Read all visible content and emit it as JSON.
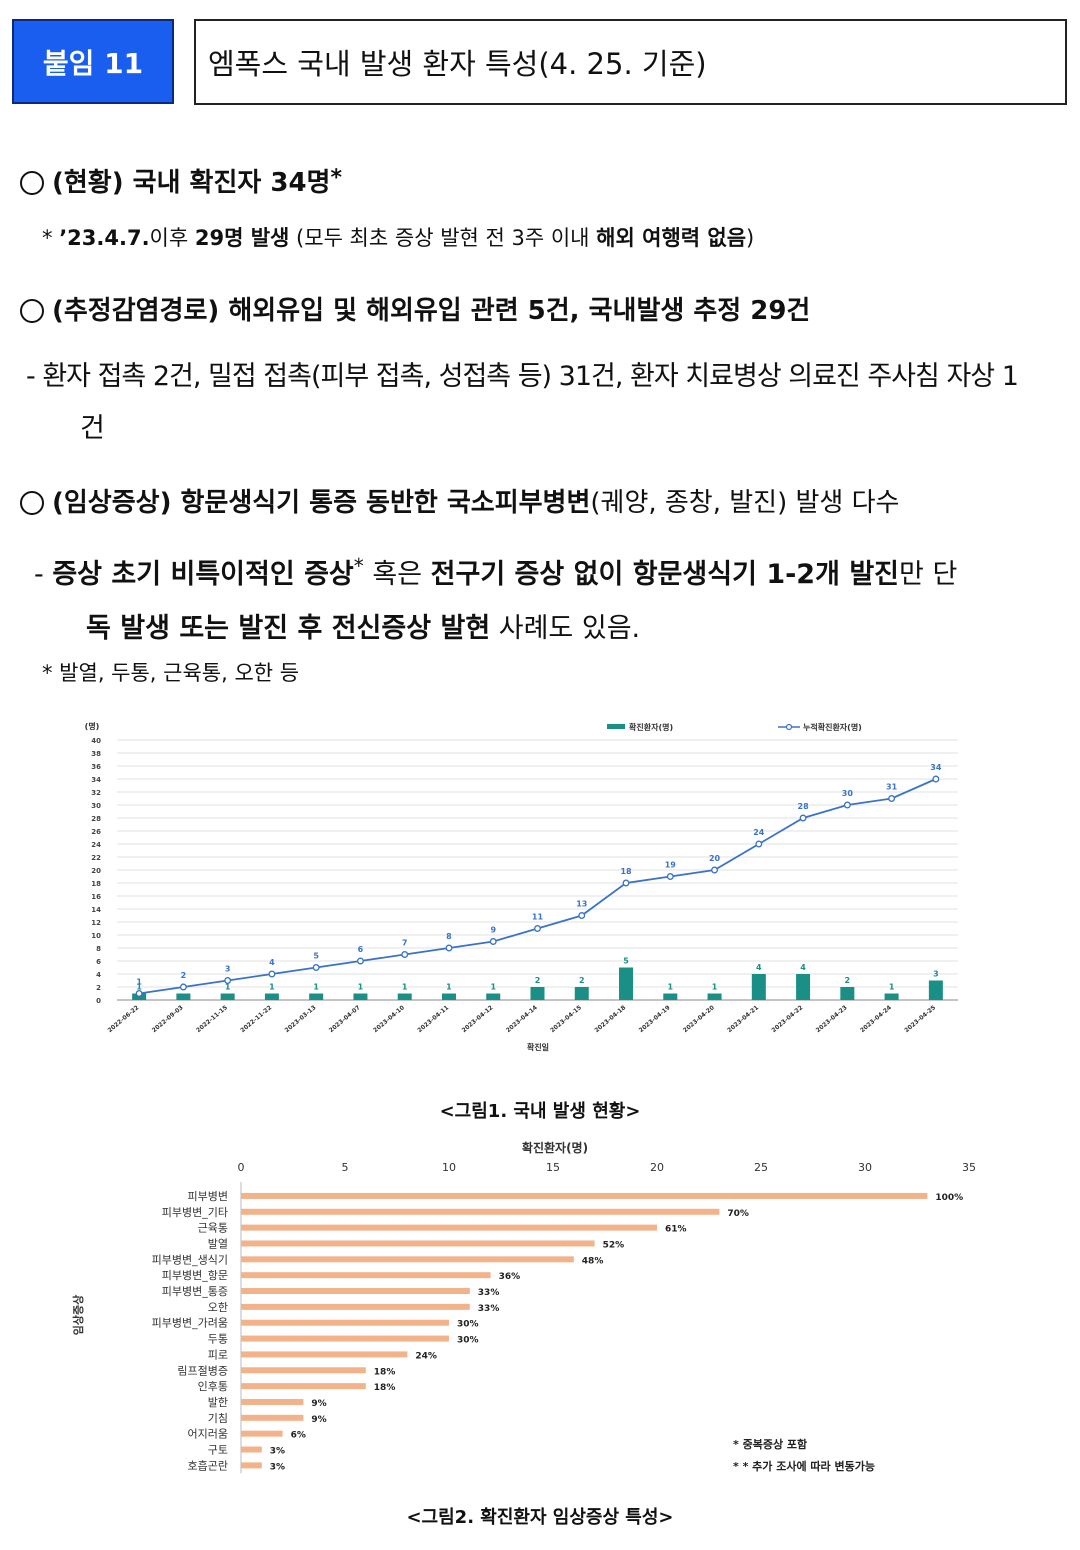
{
  "header": {
    "badge": "붙임 11",
    "title": "엠폭스 국내 발생 환자 특성(4. 25. 기준)"
  },
  "section1": {
    "label": "(현황) 국내 확진자 34명",
    "star": "*",
    "note_prefix": "* ",
    "note_bold1": "’23.4.7.",
    "note_t1": "이후 ",
    "note_bold2": "29명 발생",
    "note_t2": " (모두 최초 증상 발현 전 3주 이내 ",
    "note_bold3": "해외 여행력 없음",
    "note_t3": ")"
  },
  "section2": {
    "label": "(추정감염경로) 해외유입 및 해외유입 관련 5건, 국내발생 추정 29건",
    "detail_line1": "- 환자 접촉 2건, 밀접 접촉(피부 접촉, 성접촉 등) 31건, 환자 치료병상 의료진 주사침 자상 1",
    "detail_line2": "건"
  },
  "section3": {
    "label_bold": "(임상증상) 항문생식기 통증 동반한 국소피부병변",
    "label_rest": "(궤양, 종창, 발진) 발생 다수",
    "l1_dash": "- ",
    "l1_b1": "증상 초기 비특이적인 증상",
    "l1_star": "*",
    "l1_t1": " 혹은 ",
    "l1_b2": "전구기 증상 없이 항문생식기 1-2개 발진",
    "l1_t2": "만 단",
    "l2_b1": "독 발생 또는 발진 후 전신증상 발현",
    "l2_t1": " 사례도 있음.",
    "footnote": "* 발열, 두통, 근육통, 오한 등"
  },
  "chart1_caption": "<그림1. 국내 발생 현황>",
  "chart2_caption": "<그림2. 확진환자 임상증상 특성>",
  "chart_data": [
    {
      "type": "bar",
      "title": "",
      "ylabel": "(명)",
      "xlabel": "확진일",
      "ylim": [
        0,
        40
      ],
      "yticks": [
        0,
        2,
        4,
        6,
        8,
        10,
        12,
        14,
        16,
        18,
        20,
        22,
        24,
        26,
        28,
        30,
        32,
        34,
        36,
        38,
        40
      ],
      "categories": [
        "2022-06-22",
        "2022-09-03",
        "2022-11-15",
        "2022-11-22",
        "2023-03-13",
        "2023-04-07",
        "2023-04-10",
        "2023-04-11",
        "2023-04-12",
        "2023-04-14",
        "2023-04-15",
        "2023-04-18",
        "2023-04-19",
        "2023-04-20",
        "2023-04-21",
        "2023-04-22",
        "2023-04-23",
        "2023-04-24",
        "2023-04-25"
      ],
      "series": [
        {
          "name": "확진환자(명)",
          "kind": "bar",
          "color": "#1a8f86",
          "values": [
            1,
            1,
            1,
            1,
            1,
            1,
            1,
            1,
            1,
            2,
            2,
            5,
            1,
            1,
            4,
            4,
            2,
            1,
            3
          ]
        },
        {
          "name": "누적확진환자(명)",
          "kind": "line",
          "color": "#3b73c8",
          "values": [
            1,
            2,
            3,
            4,
            5,
            6,
            7,
            8,
            9,
            11,
            13,
            18,
            19,
            20,
            24,
            28,
            30,
            31,
            34
          ]
        }
      ]
    },
    {
      "type": "bar",
      "orientation": "horizontal",
      "title": "확진환자(명)",
      "ylabel": "임상증상",
      "xlim": [
        0,
        35
      ],
      "xticks": [
        0,
        5,
        10,
        15,
        20,
        25,
        30,
        35
      ],
      "color": "#f2b28a",
      "categories": [
        "피부병변",
        "피부병변_기타",
        "근육통",
        "발열",
        "피부병변_생식기",
        "피부병변_항문",
        "피부병변_통증",
        "오한",
        "피부병변_가려움",
        "두통",
        "피로",
        "림프절병증",
        "인후통",
        "발한",
        "기침",
        "어지러움",
        "구토",
        "호흡곤란"
      ],
      "values": [
        33,
        23,
        20,
        17,
        16,
        12,
        11,
        11,
        10,
        10,
        8,
        6,
        6,
        3,
        3,
        2,
        1,
        1
      ],
      "labels": [
        "100%",
        "70%",
        "61%",
        "52%",
        "48%",
        "36%",
        "33%",
        "33%",
        "30%",
        "30%",
        "24%",
        "18%",
        "18%",
        "9%",
        "9%",
        "6%",
        "3%",
        "3%"
      ],
      "notes": [
        "* 중복증상 포함",
        "* *  추가 조사에 따라 변동가능"
      ]
    }
  ]
}
